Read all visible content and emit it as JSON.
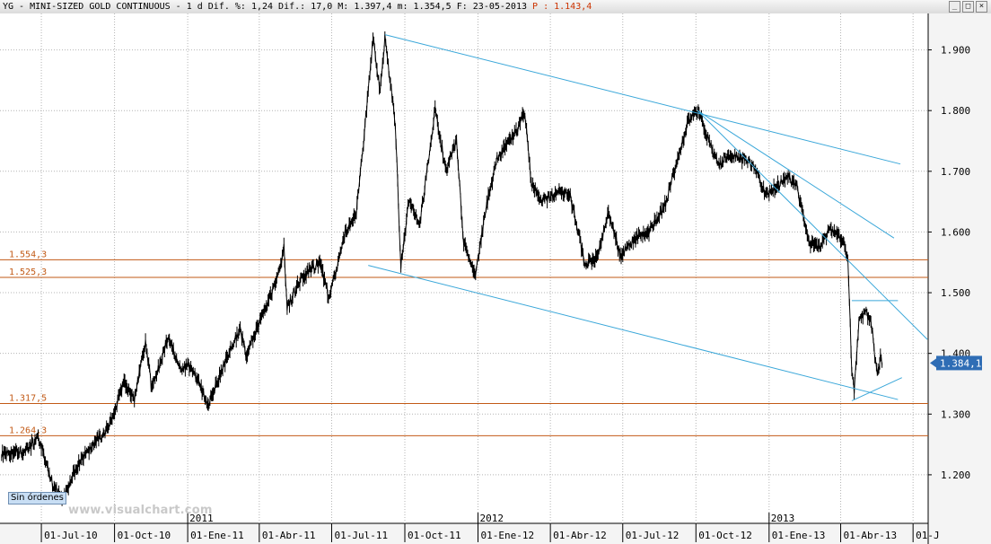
{
  "window": {
    "title_prefix": "YG - MINI-SIZED GOLD CONTINUOUS -  1 d Dif. %: 1,24 Dif.: 17,0 M: 1.397,4 m: 1.354,5 F: 23-05-2013",
    "title_p": "P : 1.143,4",
    "buttons": [
      "_",
      "□",
      "×"
    ]
  },
  "status": {
    "orders_label": "Sin órdenes"
  },
  "watermark": "www.visualchart.com",
  "colors": {
    "background": "#ffffff",
    "price": "#000000",
    "trendline": "#3aa7d9",
    "hline": "#c25a16",
    "hline_label": "#c25a16",
    "last_price_bg": "#2f6db5",
    "grid": "#b4b4b4"
  },
  "chart_data": {
    "type": "line",
    "title": "YG - MINI-SIZED GOLD CONTINUOUS",
    "timeframe": "1 d",
    "ylim": [
      1120,
      1960
    ],
    "y_ticks": [
      "1.200",
      "1.300",
      "1.400",
      "1.500",
      "1.600",
      "1.700",
      "1.800",
      "1.900"
    ],
    "x_range": [
      "2010-05-10",
      "2013-07-20"
    ],
    "x_ticks": [
      "01-Jul-10",
      "01-Oct-10",
      "01-Ene-11",
      "01-Abr-11",
      "01-Jul-11",
      "01-Oct-11",
      "01-Ene-12",
      "01-Abr-12",
      "01-Jul-12",
      "01-Oct-12",
      "01-Ene-13",
      "01-Abr-13",
      "01-J"
    ],
    "x_tick_dates": [
      "2010-07-01",
      "2010-10-01",
      "2011-01-01",
      "2011-04-01",
      "2011-07-01",
      "2011-10-01",
      "2012-01-01",
      "2012-04-01",
      "2012-07-01",
      "2012-10-01",
      "2013-01-01",
      "2013-04-01",
      "2013-07-01"
    ],
    "year_marks": [
      {
        "label": "2011",
        "date": "2011-01-01"
      },
      {
        "label": "2012",
        "date": "2012-01-01"
      },
      {
        "label": "2013",
        "date": "2013-01-01"
      }
    ],
    "grid": true,
    "series": [
      {
        "points": [
          [
            "2010-05-12",
            1235
          ],
          [
            "2010-06-10",
            1240
          ],
          [
            "2010-06-28",
            1260
          ],
          [
            "2010-07-15",
            1185
          ],
          [
            "2010-07-27",
            1160
          ],
          [
            "2010-08-15",
            1215
          ],
          [
            "2010-09-01",
            1245
          ],
          [
            "2010-09-22",
            1275
          ],
          [
            "2010-10-13",
            1350
          ],
          [
            "2010-10-26",
            1325
          ],
          [
            "2010-11-09",
            1420
          ],
          [
            "2010-11-17",
            1340
          ],
          [
            "2010-12-07",
            1425
          ],
          [
            "2010-12-22",
            1375
          ],
          [
            "2011-01-05",
            1380
          ],
          [
            "2011-01-27",
            1315
          ],
          [
            "2011-02-18",
            1390
          ],
          [
            "2011-03-08",
            1440
          ],
          [
            "2011-03-16",
            1395
          ],
          [
            "2011-04-06",
            1465
          ],
          [
            "2011-04-25",
            1530
          ],
          [
            "2011-05-02",
            1575
          ],
          [
            "2011-05-06",
            1475
          ],
          [
            "2011-05-24",
            1525
          ],
          [
            "2011-06-16",
            1550
          ],
          [
            "2011-06-28",
            1490
          ],
          [
            "2011-07-18",
            1600
          ],
          [
            "2011-08-01",
            1630
          ],
          [
            "2011-08-11",
            1760
          ],
          [
            "2011-08-22",
            1920
          ],
          [
            "2011-08-31",
            1830
          ],
          [
            "2011-09-06",
            1920
          ],
          [
            "2011-09-19",
            1780
          ],
          [
            "2011-09-26",
            1545
          ],
          [
            "2011-10-06",
            1650
          ],
          [
            "2011-10-20",
            1615
          ],
          [
            "2011-11-08",
            1800
          ],
          [
            "2011-11-22",
            1700
          ],
          [
            "2011-12-05",
            1750
          ],
          [
            "2011-12-14",
            1580
          ],
          [
            "2011-12-29",
            1530
          ],
          [
            "2012-01-11",
            1640
          ],
          [
            "2012-01-25",
            1720
          ],
          [
            "2012-02-15",
            1760
          ],
          [
            "2012-02-29",
            1795
          ],
          [
            "2012-03-08",
            1680
          ],
          [
            "2012-03-21",
            1650
          ],
          [
            "2012-04-10",
            1665
          ],
          [
            "2012-04-26",
            1660
          ],
          [
            "2012-05-15",
            1545
          ],
          [
            "2012-05-30",
            1560
          ],
          [
            "2012-06-13",
            1630
          ],
          [
            "2012-06-28",
            1560
          ],
          [
            "2012-07-17",
            1590
          ],
          [
            "2012-08-03",
            1600
          ],
          [
            "2012-08-22",
            1640
          ],
          [
            "2012-09-06",
            1710
          ],
          [
            "2012-09-21",
            1780
          ],
          [
            "2012-10-04",
            1800
          ],
          [
            "2012-10-17",
            1750
          ],
          [
            "2012-10-30",
            1710
          ],
          [
            "2012-11-13",
            1730
          ],
          [
            "2012-11-28",
            1720
          ],
          [
            "2012-12-12",
            1710
          ],
          [
            "2012-12-28",
            1660
          ],
          [
            "2013-01-10",
            1675
          ],
          [
            "2013-01-25",
            1690
          ],
          [
            "2013-02-05",
            1675
          ],
          [
            "2013-02-20",
            1580
          ],
          [
            "2013-03-05",
            1575
          ],
          [
            "2013-03-19",
            1605
          ],
          [
            "2013-04-02",
            1590
          ],
          [
            "2013-04-10",
            1560
          ],
          [
            "2013-04-15",
            1370
          ],
          [
            "2013-04-18",
            1340
          ],
          [
            "2013-04-24",
            1455
          ],
          [
            "2013-05-03",
            1470
          ],
          [
            "2013-05-10",
            1445
          ],
          [
            "2013-05-17",
            1360
          ],
          [
            "2013-05-21",
            1395
          ],
          [
            "2013-05-23",
            1384
          ]
        ]
      }
    ],
    "horizontal_lines": [
      {
        "value": 1554.3,
        "label": "1.554,3"
      },
      {
        "value": 1525.3,
        "label": "1.525,3"
      },
      {
        "value": 1317.5,
        "label": "1.317,5"
      },
      {
        "value": 1264.3,
        "label": "1.264,3"
      }
    ],
    "trendlines": [
      {
        "from": [
          "2011-09-06",
          1925
        ],
        "to": [
          "2013-06-15",
          1712
        ]
      },
      {
        "from": [
          "2011-08-16",
          1545
        ],
        "to": [
          "2013-06-12",
          1324
        ]
      },
      {
        "from": [
          "2012-10-03",
          1800
        ],
        "to": [
          "2013-06-07",
          1590
        ]
      },
      {
        "from": [
          "2012-10-03",
          1800
        ],
        "to": [
          "2013-07-19",
          1423
        ]
      },
      {
        "from": [
          "2013-04-15",
          1487
        ],
        "to": [
          "2013-06-12",
          1487
        ]
      },
      {
        "from": [
          "2013-04-15",
          1322
        ],
        "to": [
          "2013-06-17",
          1360
        ]
      }
    ],
    "last_price": {
      "value": 1384.1,
      "label": "1.384,1"
    }
  }
}
